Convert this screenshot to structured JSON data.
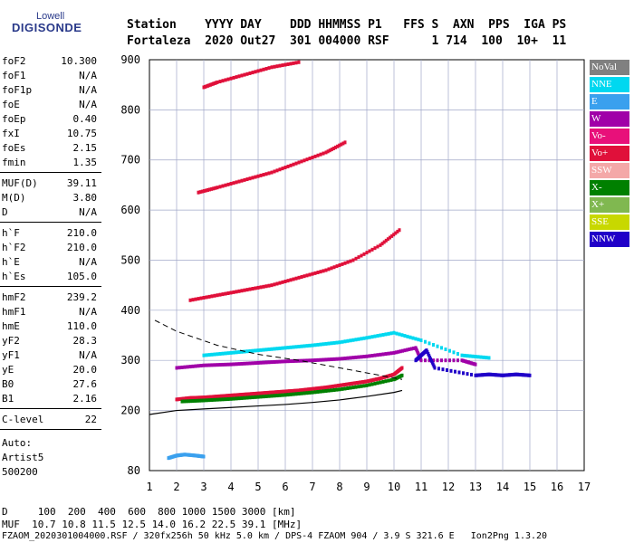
{
  "logo": {
    "top": "Lowell",
    "main": "DIGISONDE"
  },
  "header": {
    "line1": "Station    YYYY DAY    DDD HHMMSS P1   FFS S  AXN  PPS  IGA PS",
    "line2": "Fortaleza  2020 Out27  301 004000 RSF      1 714  100  10+  11"
  },
  "params": [
    {
      "label": "foF2",
      "value": "10.300"
    },
    {
      "label": "foF1",
      "value": "N/A"
    },
    {
      "label": "foF1p",
      "value": "N/A"
    },
    {
      "label": "foE",
      "value": "N/A"
    },
    {
      "label": "foEp",
      "value": "0.40"
    },
    {
      "label": "fxI",
      "value": "10.75"
    },
    {
      "label": "foEs",
      "value": "2.15"
    },
    {
      "label": "fmin",
      "value": "1.35"
    },
    {
      "label": "MUF(D)",
      "value": "39.11"
    },
    {
      "label": "M(D)",
      "value": "3.80"
    },
    {
      "label": "D",
      "value": "N/A"
    },
    {
      "label": "h`F",
      "value": "210.0"
    },
    {
      "label": "h`F2",
      "value": "210.0"
    },
    {
      "label": "h`E",
      "value": "N/A"
    },
    {
      "label": "h`Es",
      "value": "105.0"
    },
    {
      "label": "hmF2",
      "value": "239.2"
    },
    {
      "label": "hmF1",
      "value": "N/A"
    },
    {
      "label": "hmE",
      "value": "110.0"
    },
    {
      "label": "yF2",
      "value": "28.3"
    },
    {
      "label": "yF1",
      "value": "N/A"
    },
    {
      "label": "yE",
      "value": "20.0"
    },
    {
      "label": "B0",
      "value": "27.6"
    },
    {
      "label": "B1",
      "value": "2.16"
    },
    {
      "label": "C-level",
      "value": "22"
    }
  ],
  "auto": [
    "Auto:",
    "Artist5",
    "500200"
  ],
  "legend": [
    {
      "label": "NoVal",
      "color": "#808080",
      "text": "#ffffff"
    },
    {
      "label": "NNE",
      "color": "#00d8f0",
      "text": "#ffffff"
    },
    {
      "label": "E",
      "color": "#3aa0ee",
      "text": "#ffffff"
    },
    {
      "label": "W",
      "color": "#a000a8",
      "text": "#ffffff"
    },
    {
      "label": "Vo-",
      "color": "#e8107a",
      "text": "#ffffff"
    },
    {
      "label": "Vo+",
      "color": "#e0103a",
      "text": "#ffffff"
    },
    {
      "label": "SSW",
      "color": "#f4a8a8",
      "text": "#ffffff"
    },
    {
      "label": "X-",
      "color": "#008000",
      "text": "#ffffff"
    },
    {
      "label": "X+",
      "color": "#80b850",
      "text": "#ffffff"
    },
    {
      "label": "SSE",
      "color": "#c8d800",
      "text": "#ffffff"
    },
    {
      "label": "NNW",
      "color": "#2000c8",
      "text": "#ffffff"
    }
  ],
  "footer": {
    "d_line": "D     100  200  400  600  800 1000 1500 3000 [km]",
    "muf_line": "MUF  10.7 10.8 11.5 12.5 14.0 16.2 22.5 39.1 [MHz]",
    "file_line": "FZAOM_2020301004000.RSF / 320fx256h 50 kHz 5.0 km / DPS-4 FZAOM 904 / 3.9 S 321.6 E   Ion2Png 1.3.20"
  },
  "chart_data": {
    "type": "scatter",
    "x": {
      "min": 1,
      "max": 17,
      "ticks": [
        1,
        2,
        3,
        4,
        5,
        6,
        7,
        8,
        9,
        10,
        11,
        12,
        13,
        14,
        15,
        16,
        17
      ]
    },
    "y": {
      "min": 80,
      "max": 900,
      "ticks": [
        80,
        200,
        300,
        400,
        500,
        600,
        700,
        800,
        900
      ]
    },
    "grid": true,
    "series": [
      {
        "name": "Vo+",
        "points": [
          [
            2.0,
            222
          ],
          [
            2.5,
            225
          ],
          [
            3.0,
            226
          ],
          [
            3.5,
            228
          ],
          [
            4.0,
            230
          ],
          [
            4.5,
            232
          ],
          [
            5.0,
            234
          ],
          [
            5.5,
            236
          ],
          [
            6.0,
            238
          ],
          [
            6.5,
            240
          ],
          [
            7.0,
            243
          ],
          [
            7.5,
            246
          ],
          [
            8.0,
            250
          ],
          [
            8.5,
            254
          ],
          [
            9.0,
            258
          ],
          [
            9.5,
            264
          ],
          [
            10.0,
            272
          ],
          [
            10.3,
            285
          ]
        ]
      },
      {
        "name": "X-",
        "points": [
          [
            2.2,
            218
          ],
          [
            3.0,
            220
          ],
          [
            4.0,
            223
          ],
          [
            5.0,
            227
          ],
          [
            6.0,
            231
          ],
          [
            7.0,
            236
          ],
          [
            8.0,
            242
          ],
          [
            9.0,
            250
          ],
          [
            10.0,
            262
          ],
          [
            10.3,
            270
          ]
        ]
      },
      {
        "name": "W",
        "points": [
          [
            2.0,
            285
          ],
          [
            3.0,
            290
          ],
          [
            4.0,
            292
          ],
          [
            5.0,
            295
          ],
          [
            6.0,
            298
          ],
          [
            7.0,
            300
          ],
          [
            8.0,
            303
          ],
          [
            9.0,
            308
          ],
          [
            10.0,
            315
          ],
          [
            10.8,
            325
          ],
          [
            11.0,
            300
          ],
          [
            12.5,
            300
          ],
          [
            13.0,
            292
          ]
        ]
      },
      {
        "name": "NNE",
        "points": [
          [
            3.0,
            310
          ],
          [
            4.0,
            315
          ],
          [
            5.0,
            320
          ],
          [
            6.0,
            325
          ],
          [
            7.0,
            330
          ],
          [
            8.0,
            336
          ],
          [
            9.0,
            345
          ],
          [
            10.0,
            355
          ],
          [
            11.0,
            340
          ],
          [
            12.5,
            310
          ],
          [
            13.5,
            305
          ]
        ]
      },
      {
        "name": "NNW",
        "points": [
          [
            10.8,
            300
          ],
          [
            11.0,
            310
          ],
          [
            11.2,
            320
          ],
          [
            11.5,
            285
          ],
          [
            13.0,
            270
          ],
          [
            13.5,
            272
          ],
          [
            14.0,
            270
          ],
          [
            14.5,
            272
          ],
          [
            15.0,
            270
          ]
        ]
      },
      {
        "name": "E",
        "points": [
          [
            1.7,
            105
          ],
          [
            2.0,
            110
          ],
          [
            2.3,
            112
          ],
          [
            2.7,
            110
          ],
          [
            3.0,
            108
          ]
        ]
      },
      {
        "name": "Vo+ 2-hop",
        "points": [
          [
            2.5,
            420
          ],
          [
            3.5,
            430
          ],
          [
            4.5,
            440
          ],
          [
            5.5,
            450
          ],
          [
            6.5,
            465
          ],
          [
            7.5,
            480
          ],
          [
            8.5,
            500
          ],
          [
            9.5,
            530
          ],
          [
            10.2,
            560
          ]
        ]
      },
      {
        "name": "Vo+ 3-hop",
        "points": [
          [
            2.8,
            635
          ],
          [
            3.5,
            645
          ],
          [
            4.5,
            660
          ],
          [
            5.5,
            675
          ],
          [
            6.5,
            695
          ],
          [
            7.5,
            715
          ],
          [
            8.2,
            735
          ]
        ]
      },
      {
        "name": "Vo+ 4-hop",
        "points": [
          [
            3.0,
            845
          ],
          [
            3.5,
            855
          ],
          [
            4.5,
            870
          ],
          [
            5.5,
            885
          ],
          [
            6.5,
            895
          ]
        ]
      }
    ]
  }
}
